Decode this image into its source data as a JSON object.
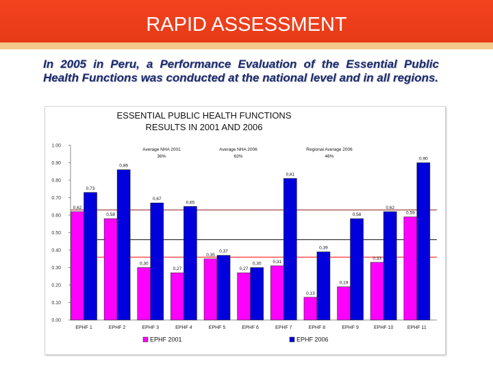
{
  "banner": {
    "title": "RAPID ASSESSMENT"
  },
  "intro": "In 2005 in Peru, a Performance Evaluation of the Essential Public Health Functions was conducted at the national level and in all regions.",
  "colors": {
    "banner": "#f4421f",
    "stripe": "#f3c98a",
    "series_2001": "#ff00ff",
    "series_2006": "#0000dd",
    "avg_2001": "#ff0000",
    "avg_2006": "#8b1a1a",
    "avg_regional": "#000000"
  },
  "chart_data": {
    "type": "bar",
    "title": "ESSENTIAL PUBLIC HEALTH FUNCTIONS",
    "subtitle": "RESULTS IN 2001 AND 2006",
    "categories": [
      "EPHF 1",
      "EPHF 2",
      "EPHF 3",
      "EPHF 4",
      "EPHF 5",
      "EPHF 6",
      "EPHF 7",
      "EPHF 8",
      "EPHF 9",
      "EPHF 10",
      "EPHF 11"
    ],
    "series": [
      {
        "name": "EPHF 2001",
        "values": [
          0.62,
          0.58,
          0.3,
          0.27,
          0.35,
          0.27,
          0.31,
          0.13,
          0.19,
          0.33,
          0.59
        ],
        "labels": [
          "0,62",
          "0,58",
          "0,30",
          "0,27",
          "0,35",
          "0,27",
          "0,31",
          "0,13",
          "0,19",
          "0,33",
          "0,59"
        ]
      },
      {
        "name": "EPHF 2006",
        "values": [
          0.73,
          0.86,
          0.67,
          0.65,
          0.37,
          0.3,
          0.81,
          0.39,
          0.58,
          0.62,
          0.9
        ],
        "labels": [
          "0,73",
          "0,86",
          "0,67",
          "0,65",
          "0,37",
          "0,30",
          "0,81",
          "0,39",
          "0,58",
          "0,62",
          "0,90"
        ]
      }
    ],
    "reference_lines": [
      {
        "name": "Average NHA 2001",
        "value_label": "36%",
        "value": 0.36
      },
      {
        "name": "Average NHA 2006",
        "value_label": "63%",
        "value": 0.63
      },
      {
        "name": "Regional Average 2006",
        "value_label": "46%",
        "value": 0.46
      }
    ],
    "yticks": [
      "0.00",
      "0.10",
      "0.20",
      "0.30",
      "0.40",
      "0.50",
      "0.60",
      "0.70",
      "0.80",
      "0.90",
      "1.00"
    ],
    "ylim": [
      0,
      1
    ],
    "grid": false,
    "legend_position": "bottom"
  }
}
